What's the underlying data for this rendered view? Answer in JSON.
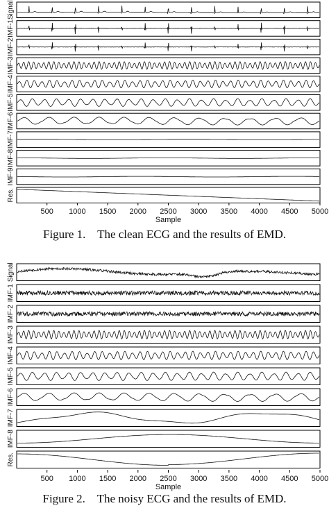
{
  "charts": [
    {
      "caption_number": "Figure 1.",
      "caption_text": "The clean ECG and the results of EMD.",
      "chart_data": {
        "type": "line",
        "title": "",
        "xlabel": "Sample",
        "xlim": [
          0,
          5000
        ],
        "x_ticks": [
          "500",
          "1000",
          "1500",
          "2000",
          "2500",
          "3000",
          "3500",
          "4000",
          "4500",
          "5000"
        ],
        "grid": false,
        "series": [
          {
            "name": "Signal",
            "kind": "ecg"
          },
          {
            "name": "IMF-1",
            "kind": "spikes"
          },
          {
            "name": "IMF-2",
            "kind": "spikes"
          },
          {
            "name": "IMF-3",
            "kind": "wave"
          },
          {
            "name": "IMF-4",
            "kind": "wave"
          },
          {
            "name": "IMF-5",
            "kind": "wave"
          },
          {
            "name": "IMF-6",
            "kind": "wave"
          },
          {
            "name": "IMF-7",
            "kind": "flat"
          },
          {
            "name": "IMF-8",
            "kind": "flat"
          },
          {
            "name": "IMF-9",
            "kind": "flat"
          },
          {
            "name": "Res.",
            "kind": "trend_down"
          }
        ]
      }
    },
    {
      "caption_number": "Figure 2.",
      "caption_text": "The noisy ECG and the results of EMD.",
      "chart_data": {
        "type": "line",
        "title": "",
        "xlabel": "Sample",
        "xlim": [
          0,
          5000
        ],
        "x_ticks": [
          "500",
          "1000",
          "1500",
          "2000",
          "2500",
          "3000",
          "3500",
          "4000",
          "4500",
          "5000"
        ],
        "grid": false,
        "series": [
          {
            "name": "Signal",
            "kind": "noisy"
          },
          {
            "name": "IMF-1",
            "kind": "noise"
          },
          {
            "name": "IMF-2",
            "kind": "noise"
          },
          {
            "name": "IMF-3",
            "kind": "wave"
          },
          {
            "name": "IMF-4",
            "kind": "wave"
          },
          {
            "name": "IMF-5",
            "kind": "wave"
          },
          {
            "name": "IMF-6",
            "kind": "wave"
          },
          {
            "name": "IMF-7",
            "kind": "slow"
          },
          {
            "name": "IMF-8",
            "kind": "slow"
          },
          {
            "name": "Res.",
            "kind": "trend_u"
          }
        ]
      }
    }
  ]
}
